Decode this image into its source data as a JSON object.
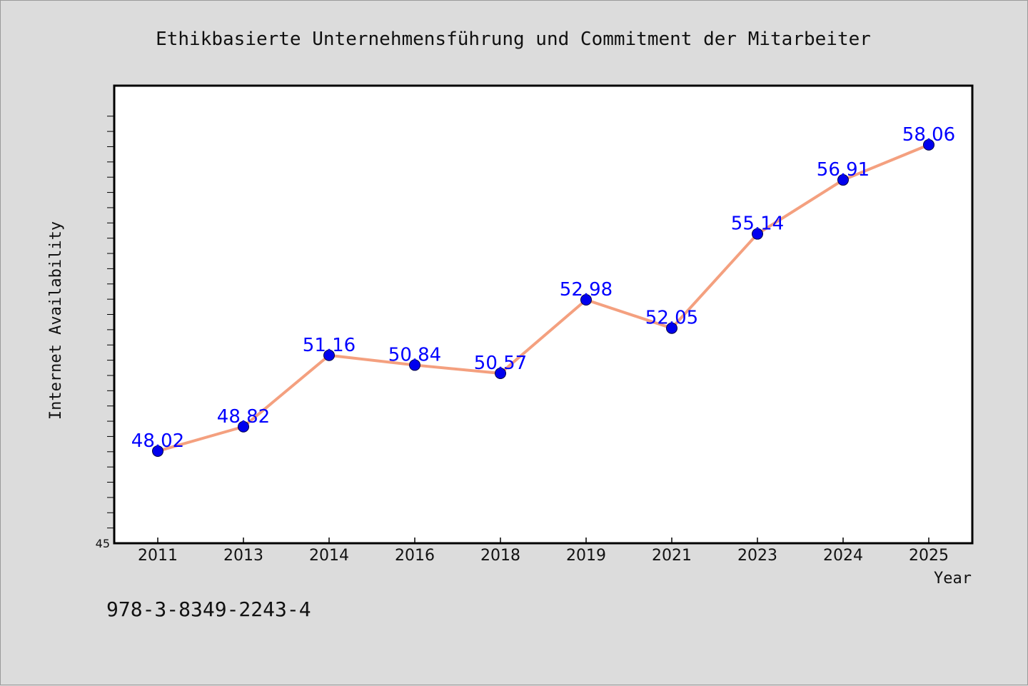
{
  "chart_data": {
    "type": "line",
    "title": "Ethikbasierte Unternehmensführung und Commitment der Mitarbeiter",
    "xlabel": "Year",
    "ylabel": "Internet Availability",
    "categories": [
      "2011",
      "2013",
      "2014",
      "2016",
      "2018",
      "2019",
      "2021",
      "2023",
      "2024",
      "2025"
    ],
    "values": [
      48.02,
      48.82,
      51.16,
      50.84,
      50.57,
      52.98,
      52.05,
      55.14,
      56.91,
      58.06
    ],
    "data_labels": [
      "48.02",
      "48.82",
      "51.16",
      "50.84",
      "50.57",
      "52.98",
      "52.05",
      "55.14",
      "56.91",
      "58.06"
    ],
    "ylim": [
      45,
      60
    ],
    "y_tick_labels": [
      "45"
    ],
    "grid": false,
    "line_color": "#f4a07f",
    "marker_color": "#0000ee",
    "label_color": "#0000ff",
    "background": "#dcdcdc",
    "plot_background": "#ffffff"
  },
  "footer": {
    "isbn": "978-3-8349-2243-4"
  }
}
